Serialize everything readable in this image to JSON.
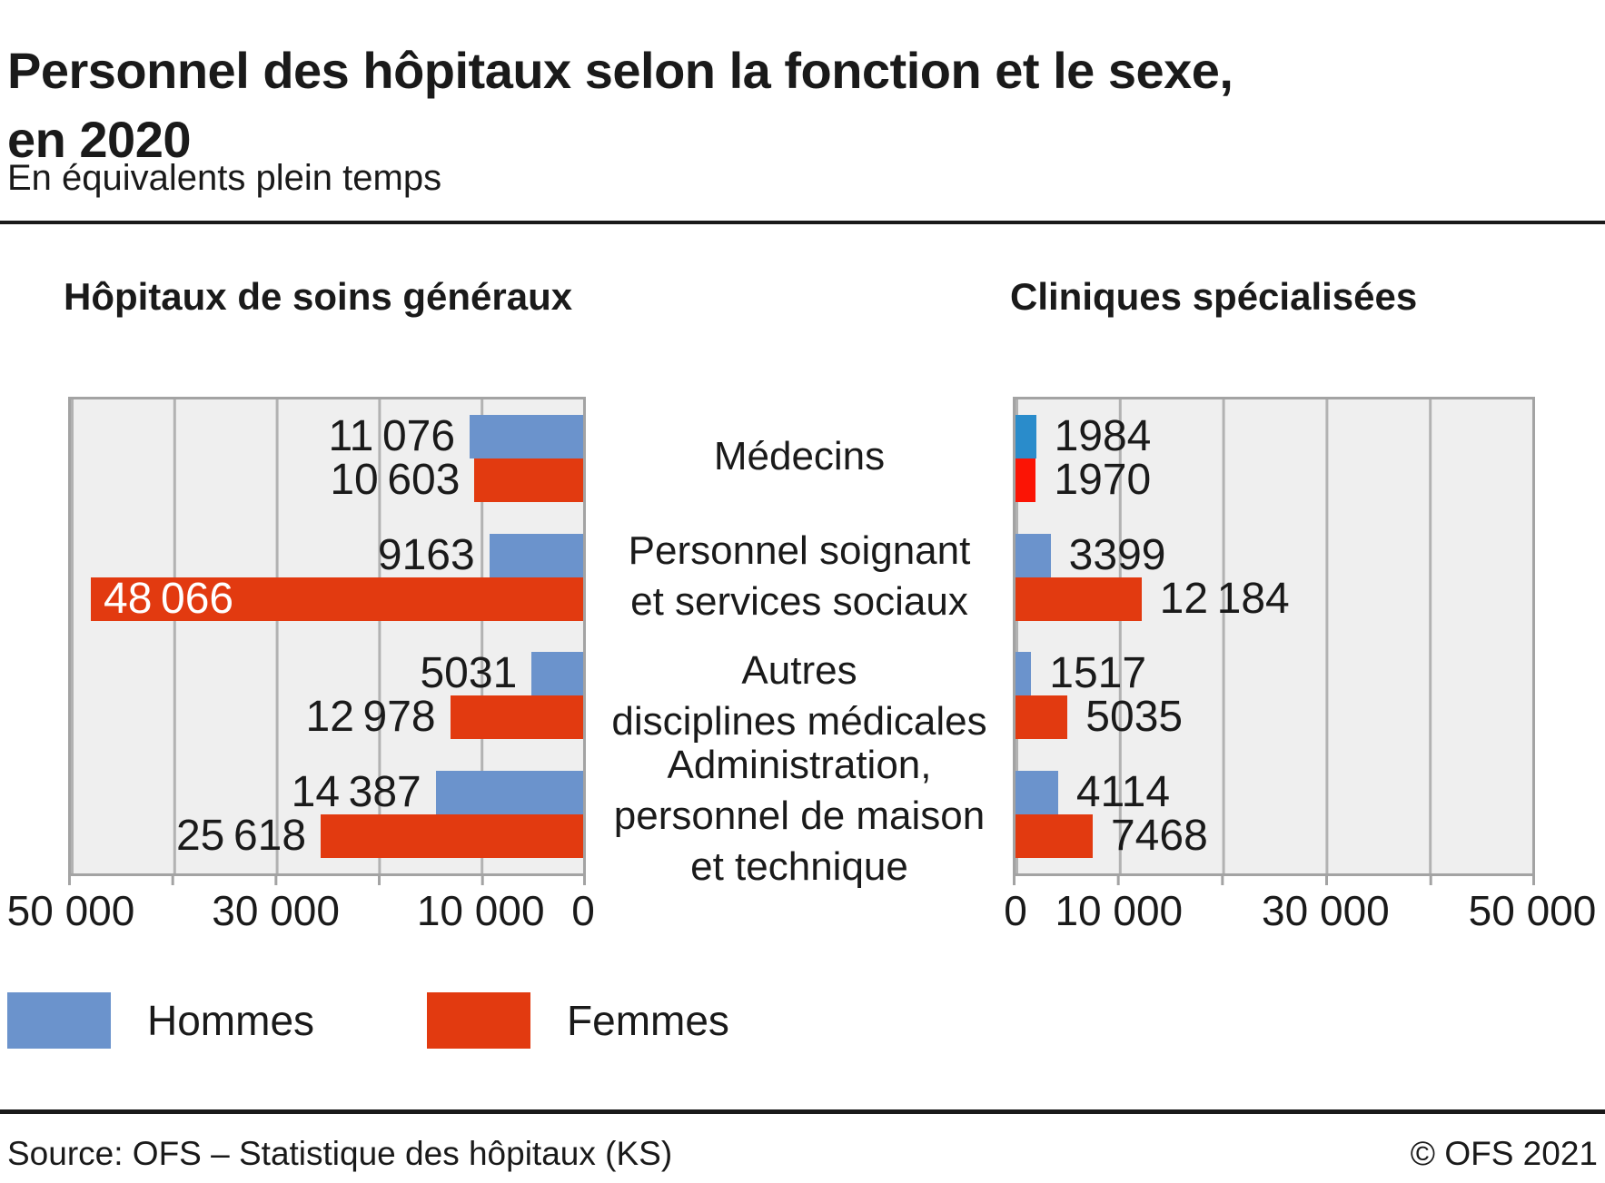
{
  "header": {
    "title": "Personnel des hôpitaux selon la fonction et le sexe,\nen 2020",
    "subtitle": "En équivalents plein temps"
  },
  "category_labels": [
    "Médecins",
    "Personnel soignant\net services sociaux",
    "Autres\ndisciplines médicales",
    "Administration,\npersonnel de maison\net technique"
  ],
  "panels": {
    "left": {
      "header": "Hôpitaux de soins généraux",
      "rows": [
        {
          "hommes_value": 11076,
          "hommes_label": "11 076",
          "femmes_value": 10603,
          "femmes_label": "10 603"
        },
        {
          "hommes_value": 9163,
          "hommes_label": "9163",
          "femmes_value": 48066,
          "femmes_label": "48 066"
        },
        {
          "hommes_value": 5031,
          "hommes_label": "5031",
          "femmes_value": 12978,
          "femmes_label": "12 978"
        },
        {
          "hommes_value": 14387,
          "hommes_label": "14 387",
          "femmes_value": 25618,
          "femmes_label": "25 618"
        }
      ],
      "axis_ticks": [
        "50 000",
        "30 000",
        "10 000",
        "0"
      ]
    },
    "right": {
      "header": "Cliniques spécialisées",
      "rows": [
        {
          "hommes_value": 1984,
          "hommes_label": "1984",
          "femmes_value": 1970,
          "femmes_label": "1970"
        },
        {
          "hommes_value": 3399,
          "hommes_label": "3399",
          "femmes_value": 12184,
          "femmes_label": "12 184"
        },
        {
          "hommes_value": 1517,
          "hommes_label": "1517",
          "femmes_value": 5035,
          "femmes_label": "5035"
        },
        {
          "hommes_value": 4114,
          "hommes_label": "4114",
          "femmes_value": 7468,
          "femmes_label": "7468"
        }
      ],
      "axis_ticks": [
        "0",
        "10 000",
        "30 000",
        "50 000"
      ]
    }
  },
  "legend": {
    "hommes": "Hommes",
    "femmes": "Femmes"
  },
  "footer": {
    "source": "Source: OFS – Statistique des hôpitaux (KS)",
    "copyright": "© OFS 2021"
  },
  "colors": {
    "hommes": "#6b93cc",
    "femmes": "#e23a10",
    "hommes_bright": "#2a8ccb",
    "femmes_bright": "#fb1405",
    "plot_bg": "#efefef",
    "grid": "#b2b2b2",
    "plot_border": "#a3a3a3",
    "rule": "#1a1a1a",
    "text": "#1a1a1a"
  },
  "chart_data": {
    "type": "bar",
    "title": "Personnel des hôpitaux selon la fonction et le sexe, en 2020",
    "subtitle": "En équivalents plein temps",
    "orientation": "horizontal",
    "layout": "two back-to-back panels (population-pyramid style), shared category labels in center",
    "categories": [
      "Médecins",
      "Personnel soignant et services sociaux",
      "Autres disciplines médicales",
      "Administration, personnel de maison et technique"
    ],
    "xlim": [
      0,
      50000
    ],
    "gridline_step": 10000,
    "grid": true,
    "legend_position": "bottom-left",
    "panels": [
      {
        "name": "Hôpitaux de soins généraux",
        "direction": "right-to-left",
        "tick_labels": [
          "50 000",
          "30 000",
          "10 000",
          "0"
        ],
        "series": [
          {
            "name": "Hommes",
            "color": "#6b93cc",
            "values": [
              11076,
              9163,
              5031,
              14387
            ]
          },
          {
            "name": "Femmes",
            "color": "#e23a10",
            "values": [
              10603,
              48066,
              12978,
              25618
            ]
          }
        ]
      },
      {
        "name": "Cliniques spécialisées",
        "direction": "left-to-right",
        "tick_labels": [
          "0",
          "10 000",
          "30 000",
          "50 000"
        ],
        "series": [
          {
            "name": "Hommes",
            "color": "#6b93cc (Médecins row rendered #2a8ccb)",
            "values": [
              1984,
              3399,
              1517,
              4114
            ]
          },
          {
            "name": "Femmes",
            "color": "#e23a10 (Médecins row rendered #fb1405)",
            "values": [
              1970,
              12184,
              5035,
              7468
            ]
          }
        ]
      }
    ]
  }
}
